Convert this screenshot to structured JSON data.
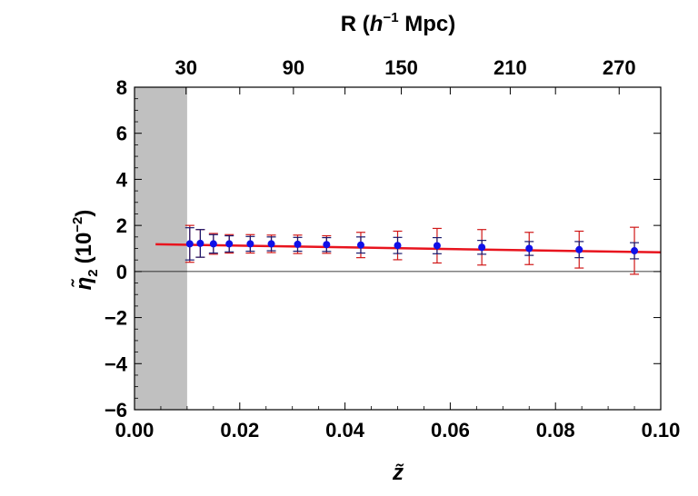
{
  "chart_data": {
    "type": "scatter",
    "xlabel": "z̃",
    "ylabel_main": "η̃",
    "ylabel_sub": "2",
    "ylabel_unit_pre": "(10",
    "ylabel_unit_exp": "−2",
    "ylabel_unit_post": ")",
    "top_xlabel_pre": "R (",
    "top_xlabel_h": "h",
    "top_xlabel_exp": "−1",
    "top_xlabel_post": " Mpc)",
    "xlim": [
      0,
      0.1
    ],
    "ylim": [
      -6,
      8
    ],
    "xticks": [
      {
        "value": 0.0,
        "label": "0.00"
      },
      {
        "value": 0.02,
        "label": "0.02"
      },
      {
        "value": 0.04,
        "label": "0.04"
      },
      {
        "value": 0.06,
        "label": "0.06"
      },
      {
        "value": 0.08,
        "label": "0.08"
      },
      {
        "value": 0.1,
        "label": "0.10"
      }
    ],
    "yticks": [
      {
        "value": -6,
        "label": "−6"
      },
      {
        "value": -4,
        "label": "−4"
      },
      {
        "value": -2,
        "label": "−2"
      },
      {
        "value": 0,
        "label": "0"
      },
      {
        "value": 2,
        "label": "2"
      },
      {
        "value": 4,
        "label": "4"
      },
      {
        "value": 6,
        "label": "6"
      },
      {
        "value": 8,
        "label": "8"
      }
    ],
    "top_ticks": [
      {
        "label": "30",
        "z": 0.0098
      },
      {
        "label": "90",
        "z": 0.0302
      },
      {
        "label": "150",
        "z": 0.0507
      },
      {
        "label": "210",
        "z": 0.0714
      },
      {
        "label": "270",
        "z": 0.0921
      }
    ],
    "shaded_region": {
      "x": [
        0,
        0.01
      ],
      "color": "#c0c0c0"
    },
    "zero_line": true,
    "fit_line": {
      "color": "#e8141e",
      "x": [
        0.004,
        0.1
      ],
      "y": [
        1.18,
        0.83
      ]
    },
    "points": {
      "color": "#1010e8",
      "inner_error_color": "#1a1a6e",
      "outer_error_color": "#d01818",
      "data": [
        {
          "x": 0.0105,
          "y": 1.2,
          "inner": 0.7,
          "outer": 0.8
        },
        {
          "x": 0.0125,
          "y": 1.22,
          "inner": 0.6,
          "outer": 0.6
        },
        {
          "x": 0.015,
          "y": 1.2,
          "inner": 0.4,
          "outer": 0.45
        },
        {
          "x": 0.018,
          "y": 1.2,
          "inner": 0.35,
          "outer": 0.4
        },
        {
          "x": 0.022,
          "y": 1.2,
          "inner": 0.32,
          "outer": 0.4
        },
        {
          "x": 0.026,
          "y": 1.2,
          "inner": 0.3,
          "outer": 0.38
        },
        {
          "x": 0.031,
          "y": 1.18,
          "inner": 0.3,
          "outer": 0.4
        },
        {
          "x": 0.0365,
          "y": 1.17,
          "inner": 0.3,
          "outer": 0.38
        },
        {
          "x": 0.043,
          "y": 1.15,
          "inner": 0.35,
          "outer": 0.55
        },
        {
          "x": 0.05,
          "y": 1.13,
          "inner": 0.35,
          "outer": 0.62
        },
        {
          "x": 0.0575,
          "y": 1.12,
          "inner": 0.35,
          "outer": 0.75
        },
        {
          "x": 0.066,
          "y": 1.05,
          "inner": 0.3,
          "outer": 0.77
        },
        {
          "x": 0.075,
          "y": 1.0,
          "inner": 0.3,
          "outer": 0.7
        },
        {
          "x": 0.0845,
          "y": 0.95,
          "inner": 0.35,
          "outer": 0.8
        },
        {
          "x": 0.095,
          "y": 0.9,
          "inner": 0.35,
          "outer": 1.02
        }
      ]
    }
  }
}
